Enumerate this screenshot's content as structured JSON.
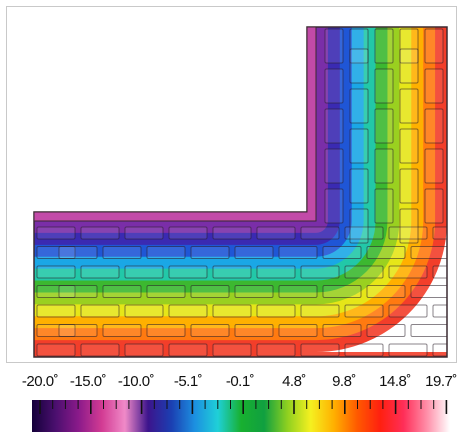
{
  "legend": {
    "ticks": [
      "-20.0˚",
      "-15.0˚",
      "-10.0˚",
      "-5.1˚",
      "-0.1˚",
      "4.8˚",
      "9.8˚",
      "14.8˚",
      "19.7˚"
    ],
    "gradient": [
      "#14003a",
      "#4a0f6e",
      "#8a1a8a",
      "#d23b93",
      "#f08ac8",
      "#3c148c",
      "#1b3fb2",
      "#1c8fe0",
      "#1fd0d8",
      "#18b030",
      "#10a040",
      "#8fd020",
      "#f5f020",
      "#ffb000",
      "#ff5a00",
      "#ff2010",
      "#ff2e58",
      "#ff8ea8",
      "#ffffff"
    ]
  },
  "diagram": {
    "bands": [
      "#7a2ea8",
      "#3a2ab2",
      "#1f56d6",
      "#1aa7e6",
      "#22c8a8",
      "#3cb830",
      "#9ad020",
      "#e6e618",
      "#ffb000",
      "#ff7a10",
      "#f23e2a"
    ]
  }
}
